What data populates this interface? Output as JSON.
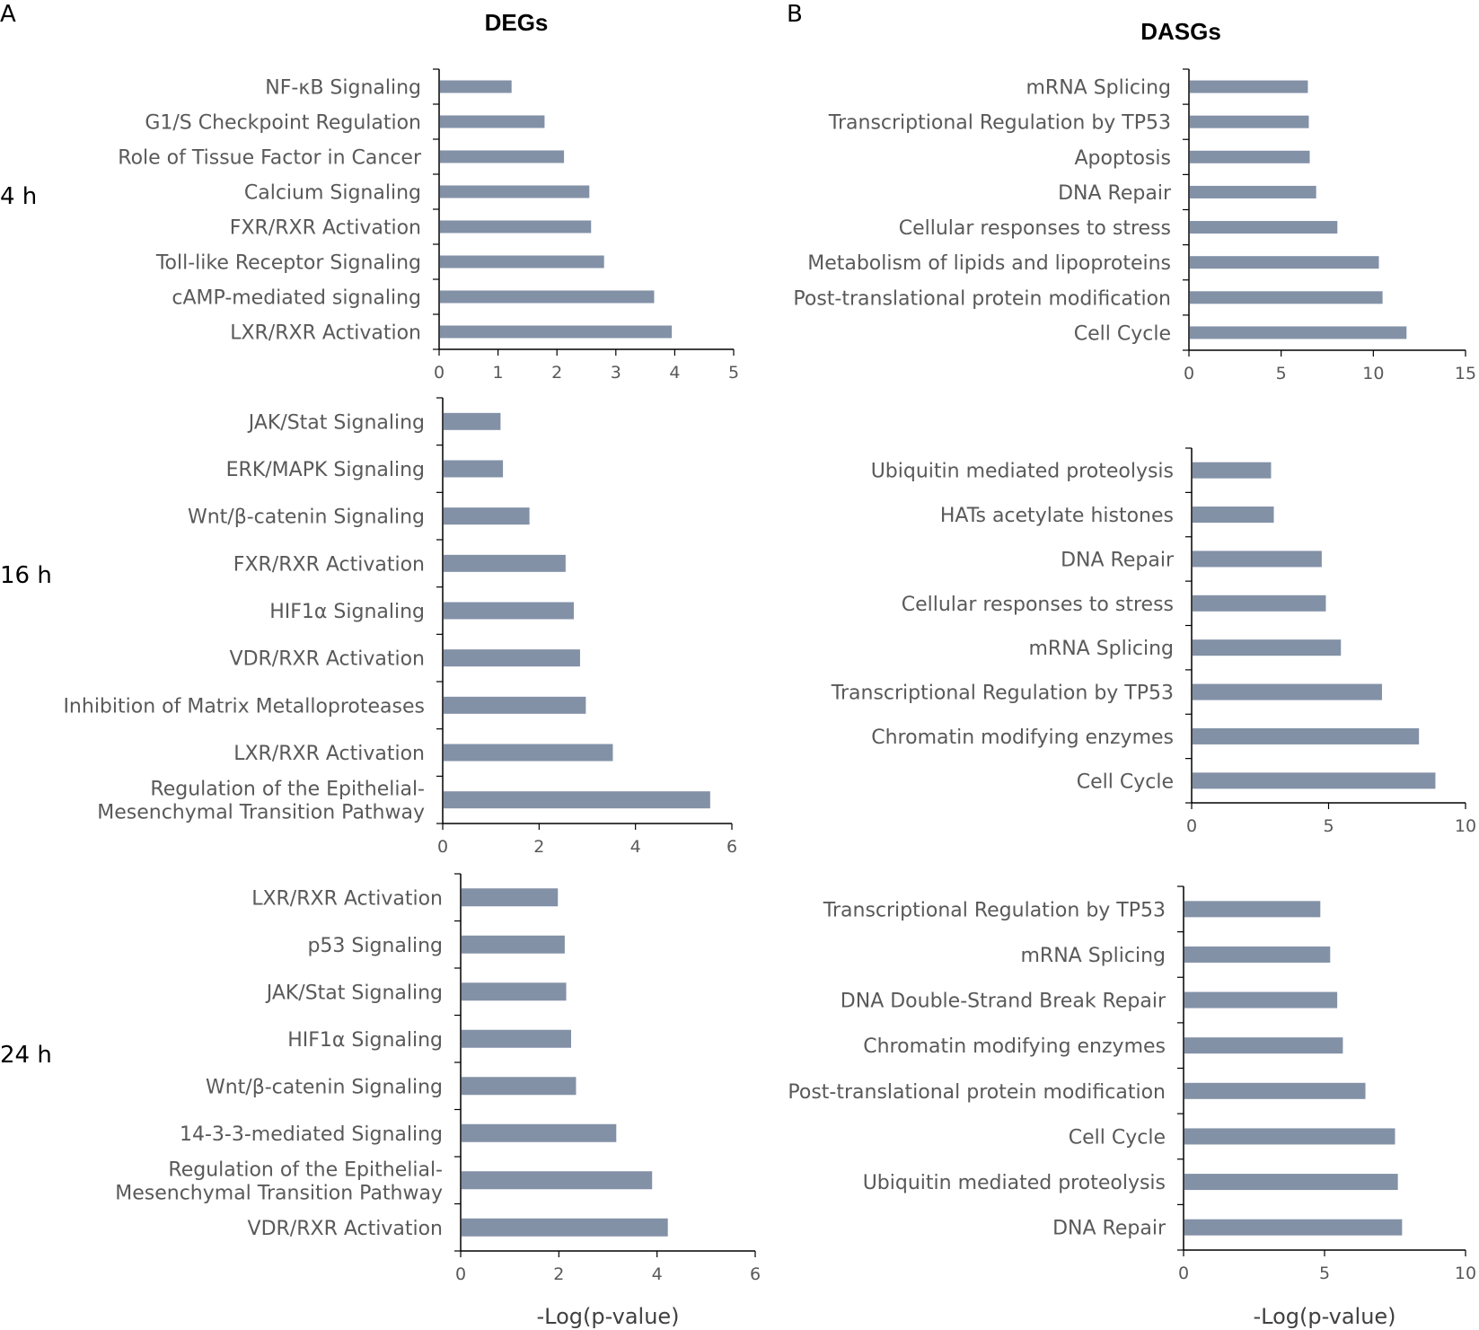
{
  "panel_labels": {
    "a": "A",
    "b": "B"
  },
  "column_titles": {
    "degs": "DEGs",
    "dasgs": "DASGs"
  },
  "time_labels": [
    "4 h",
    "16 h",
    "24 h"
  ],
  "x_axis_label": "-Log(p-value)",
  "colors": {
    "bar": "#8391a7",
    "axis": "#000000",
    "text": "#595959"
  },
  "chart_data": [
    {
      "type": "bar",
      "orientation": "horizontal",
      "panel": "A",
      "time": "4 h",
      "categories": [
        "NF-κB Signaling",
        "G1/S Checkpoint Regulation",
        "Role of Tissue Factor in Cancer",
        "Calcium Signaling",
        "FXR/RXR Activation",
        "Toll-like Receptor Signaling",
        "cAMP-mediated signaling",
        "LXR/RXR Activation"
      ],
      "values": [
        1.23,
        1.79,
        2.12,
        2.55,
        2.58,
        2.8,
        3.65,
        3.95
      ],
      "xlim": [
        0,
        5
      ],
      "xticks": [
        "0",
        "1",
        "2",
        "3",
        "4",
        "5"
      ],
      "xlabel": ""
    },
    {
      "type": "bar",
      "orientation": "horizontal",
      "panel": "B",
      "time": "4 h",
      "categories": [
        "mRNA Splicing",
        "Transcriptional Regulation by TP53",
        "Apoptosis",
        "DNA Repair",
        "Cellular responses to stress",
        "Metabolism of lipids and lipoproteins",
        "Post-translational protein modification",
        "Cell Cycle"
      ],
      "values": [
        6.45,
        6.5,
        6.55,
        6.9,
        8.05,
        10.3,
        10.5,
        11.8
      ],
      "xlim": [
        0,
        15
      ],
      "xticks": [
        "0",
        "5",
        "10",
        "15"
      ],
      "xlabel": ""
    },
    {
      "type": "bar",
      "orientation": "horizontal",
      "panel": "A",
      "time": "16 h",
      "categories": [
        "JAK/Stat Signaling",
        "ERK/MAPK Signaling",
        "Wnt/β-catenin Signaling",
        "FXR/RXR Activation",
        "HIF1α Signaling",
        "VDR/RXR Activation",
        "Inhibition of Matrix Metalloproteases",
        "LXR/RXR Activation",
        [
          "Regulation of the Epithelial-",
          "Mesenchymal Transition Pathway"
        ]
      ],
      "values": [
        1.2,
        1.25,
        1.8,
        2.55,
        2.72,
        2.85,
        2.97,
        3.53,
        5.55
      ],
      "xlim": [
        0,
        6
      ],
      "xticks": [
        "0",
        "2",
        "4",
        "6"
      ],
      "xlabel": ""
    },
    {
      "type": "bar",
      "orientation": "horizontal",
      "panel": "B",
      "time": "16 h",
      "categories": [
        "Ubiquitin mediated proteolysis",
        "HATs acetylate histones",
        "DNA Repair",
        "Cellular responses to stress",
        "mRNA Splicing",
        "Transcriptional Regulation by TP53",
        "Chromatin modifying enzymes",
        "Cell Cycle"
      ],
      "values": [
        2.9,
        3.0,
        4.75,
        4.9,
        5.45,
        6.95,
        8.3,
        8.9
      ],
      "xlim": [
        0,
        10
      ],
      "xticks": [
        "0",
        "5",
        "10"
      ],
      "xlabel": ""
    },
    {
      "type": "bar",
      "orientation": "horizontal",
      "panel": "A",
      "time": "24 h",
      "categories": [
        "LXR/RXR Activation",
        "p53 Signaling",
        "JAK/Stat Signaling",
        "HIF1α Signaling",
        "Wnt/β-catenin Signaling",
        "14-3-3-mediated Signaling",
        [
          "Regulation of the Epithelial-",
          "Mesenchymal Transition Pathway"
        ],
        "VDR/RXR Activation"
      ],
      "values": [
        1.98,
        2.12,
        2.15,
        2.25,
        2.35,
        3.17,
        3.9,
        4.22
      ],
      "xlim": [
        0,
        6
      ],
      "xticks": [
        "0",
        "2",
        "4",
        "6"
      ],
      "xlabel": "-Log(p-value)"
    },
    {
      "type": "bar",
      "orientation": "horizontal",
      "panel": "B",
      "time": "24 h",
      "categories": [
        "Transcriptional Regulation by TP53",
        "mRNA Splicing",
        "DNA Double-Strand Break Repair",
        "Chromatin modifying enzymes",
        "Post-translational protein modification",
        "Cell Cycle",
        "Ubiquitin mediated proteolysis",
        "DNA Repair"
      ],
      "values": [
        4.85,
        5.2,
        5.45,
        5.65,
        6.45,
        7.5,
        7.6,
        7.75
      ],
      "xlim": [
        0,
        10
      ],
      "xticks": [
        "0",
        "5",
        "10"
      ],
      "xlabel": "-Log(p-value)"
    }
  ]
}
